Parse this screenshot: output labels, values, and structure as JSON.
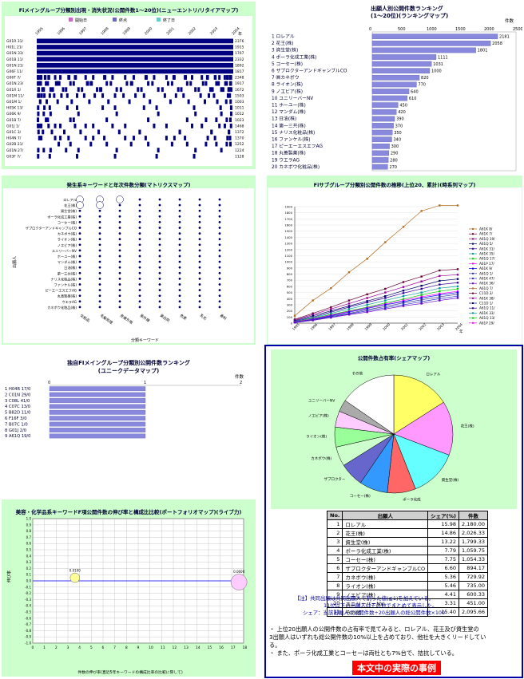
{
  "panels": {
    "p1": {
      "title": "Fiメイングループ分類別出現・消失状況(公開件数1～20位)(ニューエントリ/リタイアマップ)",
      "legend": [
        "開始日",
        "終点",
        "終了日"
      ],
      "legend_colors": [
        "#cc66cc",
        "#6666cc",
        "#66cccc"
      ],
      "x_ticks": [
        "1995",
        "1996",
        "1997",
        "1998",
        "1999",
        "2000",
        "2001",
        "2002",
        "2003",
        "2004"
      ],
      "x_unit": "年",
      "rows": [
        {
          "label": "G01R 31/",
          "value": "2376",
          "density": 1.0
        },
        {
          "label": "H01L 21/",
          "value": "1915",
          "density": 0.95
        },
        {
          "label": "G01N 33/",
          "value": "1767",
          "density": 0.9
        },
        {
          "label": "G01B 11/",
          "value": "2332",
          "density": 0.9
        },
        {
          "label": "G01N 21/",
          "value": "1892",
          "density": 0.85
        },
        {
          "label": "G06F 11/",
          "value": "1817",
          "density": 0.85
        },
        {
          "label": "G06T 7/",
          "value": "2348",
          "density": 0.7
        },
        {
          "label": "G01N 23/",
          "value": "1917",
          "density": 0.6
        },
        {
          "label": "G01R 1/",
          "value": "1672",
          "density": 0.5
        },
        {
          "label": "G01M 11/",
          "value": "1503",
          "density": 0.4
        },
        {
          "label": "G01M 1/",
          "value": "1003",
          "density": 0.25
        },
        {
          "label": "H05K 13/",
          "value": "1011",
          "density": 0.2
        },
        {
          "label": "G06K 9/",
          "value": "1012",
          "density": 0.15
        },
        {
          "label": "G01B 7/",
          "value": "1023",
          "density": 0.2
        },
        {
          "label": "G01J 1/",
          "value": "1468",
          "density": 0.3
        },
        {
          "label": "G01C 3/",
          "value": "1372",
          "density": 0.25
        },
        {
          "label": "H04N 7/",
          "value": "1370",
          "density": 0.3
        },
        {
          "label": "G02B 21/",
          "value": "1252",
          "density": 0.2
        },
        {
          "label": "G01N 27/",
          "value": "1224",
          "density": 0.15
        },
        {
          "label": "G03F 7/",
          "value": "1128",
          "density": 0.1
        }
      ]
    },
    "p2": {
      "title": "出願人別公開件数ランキング",
      "subtitle": "(1～20位)(ランキングマップ)",
      "unit": "件数",
      "ticks": [
        "0",
        "500",
        "1000",
        "1500",
        "2000",
        "2500"
      ],
      "max": 2500,
      "labels": [
        "1 ロレアル",
        "2 花王(株)",
        "3 資生堂(株)",
        "4 ポーラ化成工業(株)",
        "5 コーセー(株)",
        "6 ザプロクターアンドギャンブルCO",
        "7 ㈱カネボウ",
        "8 ライオン(株)",
        "9 ノエビア(株)",
        "10 ユニリーバーNV",
        "11 ホーユー(株)",
        "12 マンダム(株)",
        "13 日油(株)",
        "14 第一三共(株)",
        "15 ナリス化粧品(株)",
        "16 ファンケル(株)",
        "17 ピーエーエスエフAG",
        "18 丸善製薬(株)",
        "19 ウエラAG",
        "20 カネボウ化粧品(株)"
      ],
      "values": [
        2181,
        2058,
        1801,
        1111,
        1031,
        1000,
        820,
        770,
        640,
        610,
        450,
        420,
        390,
        370,
        350,
        340,
        300,
        290,
        280,
        270
      ],
      "value_labels": [
        "2181",
        "2058",
        "1801",
        "1111",
        "1031",
        "1000",
        "820",
        "770",
        "640",
        "610",
        "450",
        "420",
        "390",
        "370",
        "350",
        "340",
        "300",
        "290",
        "280",
        "270"
      ]
    },
    "p3": {
      "title": "発生系キーワードと年次件数分類(マトリクスマップ)",
      "ylabel": "出願人",
      "xlabel": "分類キーワード",
      "rows": [
        "ロレアル",
        "花王(株)",
        "資生堂(株)",
        "ポーラ化成工業(株)",
        "コーセー(株)",
        "ザプロクターアンドギャンブルCO",
        "カネボウ(株)",
        "ライオン(株)",
        "ノエビア(株)",
        "ユニリーバーNV",
        "ホーユー(株)",
        "マンダム(株)",
        "日油(株)",
        "第一三共(株)",
        "ナリス化粧品(株)",
        "ファンケル(株)",
        "ピーエーエスエフAG",
        "丸善製薬(株)",
        "ウエラAG",
        "カネボウ化粧品(株)"
      ],
      "cols": [
        "化粧品",
        "毛髪処理",
        "皮膚外用",
        "紫外線",
        "美白剤",
        "色素",
        "乳化",
        "香料"
      ],
      "big_bubbles": [
        [
          0,
          0
        ],
        [
          0,
          1
        ],
        [
          1,
          0
        ],
        [
          2,
          0
        ],
        [
          1,
          1
        ]
      ]
    },
    "p4": {
      "title": "Fiサブグループ分類別公開件数の推移(上位20、累計)(時系列マップ)",
      "y_ticks": [
        "0",
        "100",
        "200",
        "300",
        "400",
        "500",
        "600",
        "700",
        "800",
        "900",
        "1000",
        "1100",
        "1200",
        "1300",
        "1400",
        "1500",
        "1600",
        "1700",
        "1800",
        "1900"
      ],
      "y_max": 1900,
      "x_ticks": [
        "1995",
        "1996",
        "1997",
        "1998",
        "1999",
        "2000",
        "2001",
        "2002",
        "2003",
        "2004"
      ],
      "x_unit": "年",
      "legend": [
        "A61K 8/",
        "A61K 7/",
        "A61Q 19/",
        "A61Q 5/",
        "A61K 31/",
        "A61K 35/",
        "A61Q 17/",
        "A61P 17/",
        "A61K 9/",
        "A61Q 1/",
        "A61K 47/",
        "A61K 36/",
        "A61Q 7/",
        "C11D 3/",
        "A61K 38/",
        "C11D 1/",
        "A61Q 11/",
        "A61K 33/",
        "A61Q 13/",
        "A61P 29/"
      ],
      "series": [
        {
          "color": "#b26e1e",
          "values": [
            120,
            370,
            570,
            830,
            1050,
            1320,
            1570,
            1830,
            1920,
            1920
          ]
        },
        {
          "color": "#660033",
          "values": [
            60,
            160,
            260,
            370,
            470,
            560,
            670,
            760,
            860,
            880
          ]
        },
        {
          "color": "#990099",
          "values": [
            50,
            140,
            230,
            320,
            410,
            500,
            590,
            680,
            770,
            790
          ]
        },
        {
          "color": "#000066",
          "values": [
            40,
            120,
            200,
            280,
            360,
            440,
            530,
            610,
            690,
            720
          ]
        },
        {
          "color": "#330099",
          "values": [
            30,
            100,
            180,
            260,
            340,
            410,
            490,
            560,
            630,
            660
          ]
        },
        {
          "color": "#009999",
          "values": [
            25,
            90,
            160,
            230,
            300,
            370,
            440,
            500,
            570,
            600
          ]
        },
        {
          "color": "#00cc00",
          "values": [
            20,
            80,
            140,
            200,
            260,
            330,
            390,
            460,
            520,
            560
          ]
        },
        {
          "color": "#ff00ff",
          "values": [
            20,
            70,
            130,
            190,
            250,
            310,
            370,
            430,
            480,
            520
          ]
        },
        {
          "color": "#0000ff",
          "values": [
            15,
            60,
            120,
            180,
            240,
            300,
            350,
            410,
            460,
            500
          ]
        },
        {
          "color": "#333399",
          "values": [
            15,
            55,
            110,
            160,
            220,
            270,
            330,
            380,
            430,
            470
          ]
        },
        {
          "color": "#3333cc",
          "values": [
            10,
            50,
            100,
            150,
            200,
            250,
            300,
            350,
            400,
            440
          ]
        },
        {
          "color": "#6600cc",
          "values": [
            10,
            45,
            90,
            140,
            180,
            230,
            280,
            320,
            370,
            410
          ]
        }
      ]
    },
    "p5": {
      "title": "独自FIメイングループ分類別公開件数ランキング",
      "subtitle": "(ユニークデータマップ)",
      "unit": "件数",
      "ticks": [
        "0",
        "1",
        "2"
      ],
      "max": 2,
      "labels": [
        "1 H04R 17/0",
        "2 C01N 29/0",
        "3 C08L 41/0",
        "4 C07C 13/0",
        "5 B82D 11/0",
        "6 F16F 3/0",
        "7 B07C 1/0",
        "8 G01J 2/0",
        "9 A61Q 19/0"
      ],
      "values": [
        1,
        1,
        1,
        1,
        1,
        1,
        1,
        1,
        1
      ]
    },
    "p6": {
      "title": "美容・化学品系キーワードF項公開件数の伸び率と構成比比較(ポートフォリオマップ)(ライブ力)",
      "xlabel": "件数の伸び率(直近5年キーワードの構成比率の比較に際して)",
      "ylabel": "伸び率",
      "x_ticks": [
        "0",
        "1",
        "2",
        "3",
        "4",
        "5",
        "6",
        "7",
        "8",
        "9",
        "10",
        "11",
        "12",
        "13",
        "14",
        "15",
        "16",
        "17",
        "18"
      ],
      "y_ticks": [
        "-1.0",
        "-0.9",
        "-0.8",
        "-0.7",
        "-0.6",
        "-0.5",
        "-0.4",
        "-0.3",
        "-0.2",
        "-0.1",
        "0.0",
        "0.1",
        "0.2",
        "0.3",
        "0.4",
        "0.5",
        "0.6",
        "0.7",
        "0.8",
        "0.9",
        "1.0"
      ],
      "bubbles": [
        {
          "label": "0.0100",
          "x": 3.6,
          "y": 0.05,
          "r": 6,
          "color": "#ffff99"
        },
        {
          "label": "0.0600",
          "x": 17.6,
          "y": -0.02,
          "r": 10,
          "color": "#ffccff"
        }
      ]
    },
    "p7": {
      "title": "公開件数占有率(シェアマップ)",
      "slices": [
        {
          "label": "ロレアル",
          "value": 15.98,
          "color": "#ffff66"
        },
        {
          "label": "花王(株)",
          "value": 14.86,
          "color": "#ff99ff"
        },
        {
          "label": "資生堂(株)",
          "value": 13.22,
          "color": "#66ffff"
        },
        {
          "label": "ポーラ化成工業(株)",
          "value": 7.79,
          "color": "#ff6666"
        },
        {
          "label": "コーセー(株)",
          "value": 7.75,
          "color": "#3399ff"
        },
        {
          "label": "ザプロクターアンドギャンブルCO",
          "value": 6.6,
          "color": "#6666cc"
        },
        {
          "label": "カネボウ(株)",
          "value": 5.36,
          "color": "#ccffcc"
        },
        {
          "label": "ライオン(株)",
          "value": 5.46,
          "color": "#99ff99"
        },
        {
          "label": "ノエビア(株)",
          "value": 4.41,
          "color": "#ffccff"
        },
        {
          "label": "ユニリーバーNV",
          "value": 3.31,
          "color": "#aaaaaa"
        },
        {
          "label": "その他",
          "value": 15.4,
          "color": "#ffffff"
        }
      ],
      "pie_labels": [
        "ロレアル",
        "花王(株)",
        "資生堂(株)",
        "ポーラ化成",
        "コーセー(株)",
        "ザプロクター",
        "カネボウ(株)",
        "ライオン(株)",
        "ノエビア(株)",
        "ユニリーバーNV",
        "その他"
      ],
      "table_headers": [
        "No.",
        "出願人",
        "シェア(%)",
        "件数"
      ],
      "table_rows": [
        [
          "1",
          "ロレアル",
          "15.98",
          "2,180.00"
        ],
        [
          "2",
          "花王(株)",
          "14.86",
          "2,026.33"
        ],
        [
          "3",
          "資生堂(株)",
          "13.22",
          "1,799.33"
        ],
        [
          "4",
          "ポーラ化成工業(株)",
          "7.79",
          "1,059.75"
        ],
        [
          "5",
          "コーセー(株)",
          "7.75",
          "1,054.33"
        ],
        [
          "6",
          "ザプロクターアンドギャンブルCO",
          "6.60",
          "894.17"
        ],
        [
          "7",
          "カネボウ(株)",
          "5.36",
          "729.92"
        ],
        [
          "8",
          "ライオン(株)",
          "5.46",
          "735.00"
        ],
        [
          "9",
          "ノエビア(株)",
          "4.41",
          "600.33"
        ],
        [
          "10",
          "ユニリーバーNV",
          "3.31",
          "451.00"
        ],
        [
          "11",
          "その他",
          "15.40",
          "2,095.66"
        ]
      ],
      "notes": [
        "【注】共同出願は共同出願人で割った値(≦1)を加えている。",
        "11位以下の出願人はその他でまとめて表示した。",
        "シェア：当該出願人の公開件数÷20出願人の総公開件数×100"
      ],
      "bullets": [
        "・ 上位20出願人の公開件数の占有率で見てみると、ロレアル、花王及び資生堂の",
        "3出願人はいずれも総公開件数の10%以上を占めており、他社を大きくリードしてい",
        "る。",
        "・ また、ポーラ化成工業とコーセーは両社とも7%台で、拮抗している。"
      ],
      "stamp": "本文中の実際の事例"
    }
  }
}
